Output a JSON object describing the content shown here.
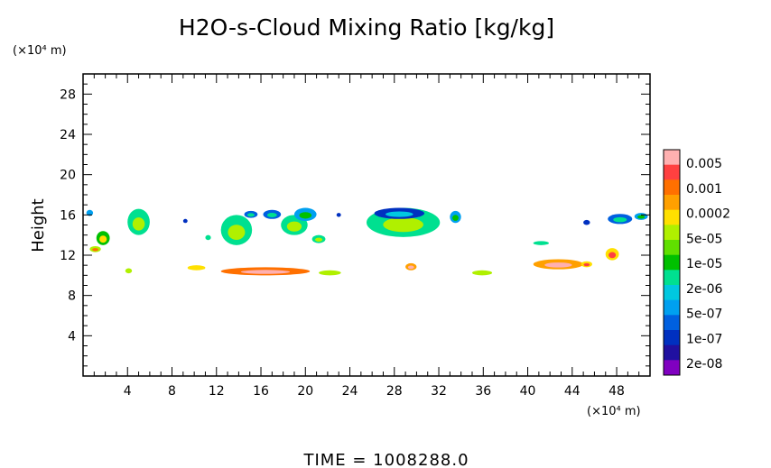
{
  "chart_data": {
    "type": "heatmap",
    "title": "H2O-s-Cloud Mixing Ratio [kg/kg]",
    "ylabel": "Height",
    "y_unit": "(×10⁴ m)",
    "x_unit": "(×10⁴ m)",
    "xlim": [
      0,
      51
    ],
    "ylim": [
      0,
      30
    ],
    "x_ticks": [
      4,
      8,
      12,
      16,
      20,
      24,
      28,
      32,
      36,
      40,
      44,
      48
    ],
    "y_ticks": [
      4,
      8,
      12,
      16,
      20,
      24,
      28
    ],
    "colorbar": {
      "labels": [
        "0.005",
        "0.001",
        "0.0002",
        "5e-05",
        "1e-05",
        "2e-06",
        "5e-07",
        "1e-07",
        "2e-08"
      ],
      "colors": [
        "#ffb0b0",
        "#ff4040",
        "#ff7000",
        "#ffa000",
        "#ffe000",
        "#b0f000",
        "#60e000",
        "#00c000",
        "#00e090",
        "#00c8e0",
        "#00a0f0",
        "#0060e0",
        "#0030c0",
        "#2010a0",
        "#8000c0"
      ]
    },
    "footer": "TIME = 1008288.0",
    "cloud_regions": [
      {
        "x": 0.3,
        "y": 15.9,
        "w": 0.6,
        "h": 0.6,
        "level": 10
      },
      {
        "x": 1.2,
        "y": 13.0,
        "w": 1.2,
        "h": 1.4,
        "level": 7
      },
      {
        "x": 0.6,
        "y": 12.3,
        "w": 1.0,
        "h": 0.6,
        "level": 5
      },
      {
        "x": 4.0,
        "y": 14.0,
        "w": 2.0,
        "h": 2.6,
        "level": 8
      },
      {
        "x": 3.8,
        "y": 10.2,
        "w": 0.6,
        "h": 0.5,
        "level": 5
      },
      {
        "x": 9.0,
        "y": 15.2,
        "w": 0.4,
        "h": 0.4,
        "level": 12
      },
      {
        "x": 11.0,
        "y": 13.5,
        "w": 0.5,
        "h": 0.5,
        "level": 8
      },
      {
        "x": 12.4,
        "y": 13.0,
        "w": 2.8,
        "h": 3.0,
        "level": 8
      },
      {
        "x": 14.5,
        "y": 15.7,
        "w": 1.2,
        "h": 0.7,
        "level": 11
      },
      {
        "x": 9.4,
        "y": 10.5,
        "w": 1.6,
        "h": 0.5,
        "level": 4
      },
      {
        "x": 12.4,
        "y": 10.0,
        "w": 8.0,
        "h": 0.8,
        "level": 2
      },
      {
        "x": 16.2,
        "y": 15.6,
        "w": 1.6,
        "h": 0.9,
        "level": 11
      },
      {
        "x": 17.8,
        "y": 14.0,
        "w": 2.4,
        "h": 2.0,
        "level": 8
      },
      {
        "x": 19.0,
        "y": 15.4,
        "w": 2.0,
        "h": 1.3,
        "level": 10
      },
      {
        "x": 20.6,
        "y": 13.2,
        "w": 1.2,
        "h": 0.8,
        "level": 8
      },
      {
        "x": 21.2,
        "y": 10.0,
        "w": 2.0,
        "h": 0.5,
        "level": 5
      },
      {
        "x": 22.8,
        "y": 15.8,
        "w": 0.4,
        "h": 0.4,
        "level": 12
      },
      {
        "x": 25.5,
        "y": 13.8,
        "w": 6.6,
        "h": 2.9,
        "level": 8
      },
      {
        "x": 26.2,
        "y": 15.6,
        "w": 4.5,
        "h": 1.1,
        "level": 12
      },
      {
        "x": 29.0,
        "y": 10.5,
        "w": 1.0,
        "h": 0.7,
        "level": 3
      },
      {
        "x": 33.0,
        "y": 15.2,
        "w": 1.0,
        "h": 1.2,
        "level": 10
      },
      {
        "x": 35.0,
        "y": 10.0,
        "w": 1.8,
        "h": 0.5,
        "level": 5
      },
      {
        "x": 40.5,
        "y": 13.0,
        "w": 1.4,
        "h": 0.4,
        "level": 8
      },
      {
        "x": 40.5,
        "y": 10.6,
        "w": 4.5,
        "h": 1.0,
        "level": 3
      },
      {
        "x": 44.8,
        "y": 10.8,
        "w": 1.0,
        "h": 0.6,
        "level": 4
      },
      {
        "x": 47.0,
        "y": 11.5,
        "w": 1.2,
        "h": 1.2,
        "level": 4
      },
      {
        "x": 45.0,
        "y": 15.0,
        "w": 0.6,
        "h": 0.5,
        "level": 12
      },
      {
        "x": 47.2,
        "y": 15.1,
        "w": 2.2,
        "h": 1.0,
        "level": 11
      },
      {
        "x": 49.6,
        "y": 15.5,
        "w": 1.2,
        "h": 0.7,
        "level": 10
      }
    ]
  }
}
